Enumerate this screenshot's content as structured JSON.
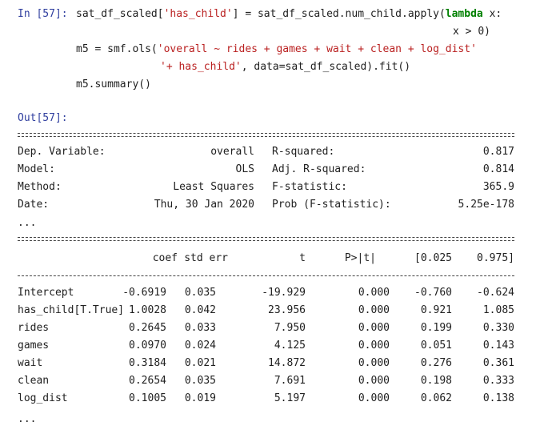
{
  "input": {
    "prompt": "In [57]:",
    "lines": [
      [
        {
          "text": "sat_df_scaled[",
          "color": "#212121"
        },
        {
          "text": "'has_child'",
          "color": "#ba2121"
        },
        {
          "text": "] = sat_df_scaled.num_child.apply(",
          "color": "#212121"
        },
        {
          "text": "lambda",
          "color": "#008000"
        },
        {
          "text": " x:",
          "color": "#212121"
        }
      ],
      [
        {
          "text": "x > 0)",
          "color": "#212121"
        }
      ],
      [
        {
          "text": "m5 = smf.ols(",
          "color": "#212121"
        },
        {
          "text": "'overall ~ rides + games + wait + clean + log_dist'",
          "color": "#ba2121"
        }
      ],
      [
        {
          "text": "'+ has_child'",
          "color": "#ba2121"
        },
        {
          "text": ", data=sat_df_scaled).fit()",
          "color": "#212121"
        }
      ],
      [
        {
          "text": "m5.summary()",
          "color": "#212121"
        }
      ]
    ]
  },
  "output": {
    "prompt": "Out[57]:",
    "summary": [
      [
        "Dep. Variable:",
        "overall",
        "R-squared:",
        "0.817"
      ],
      [
        "Model:",
        "OLS",
        "Adj. R-squared:",
        "0.814"
      ],
      [
        "Method:",
        "Least Squares",
        "F-statistic:",
        "365.9"
      ],
      [
        "Date:",
        "Thu, 30 Jan 2020",
        "Prob (F-statistic):",
        "5.25e-178"
      ]
    ],
    "summary_more": "...",
    "coef_header": [
      "coef",
      "std err",
      "t",
      "P>|t|",
      "[0.025",
      "0.975]"
    ],
    "coef_rows": [
      [
        "Intercept",
        "-0.6919",
        "0.035",
        "-19.929",
        "0.000",
        "-0.760",
        "-0.624"
      ],
      [
        "has_child[T.True]",
        "1.0028",
        "0.042",
        "23.956",
        "0.000",
        "0.921",
        "1.085"
      ],
      [
        "rides",
        "0.2645",
        "0.033",
        "7.950",
        "0.000",
        "0.199",
        "0.330"
      ],
      [
        "games",
        "0.0970",
        "0.024",
        "4.125",
        "0.000",
        "0.051",
        "0.143"
      ],
      [
        "wait",
        "0.3184",
        "0.021",
        "14.872",
        "0.000",
        "0.276",
        "0.361"
      ],
      [
        "clean",
        "0.2654",
        "0.035",
        "7.691",
        "0.000",
        "0.198",
        "0.333"
      ],
      [
        "log_dist",
        "0.1005",
        "0.019",
        "5.197",
        "0.000",
        "0.062",
        "0.138"
      ]
    ],
    "coef_more": "..."
  }
}
